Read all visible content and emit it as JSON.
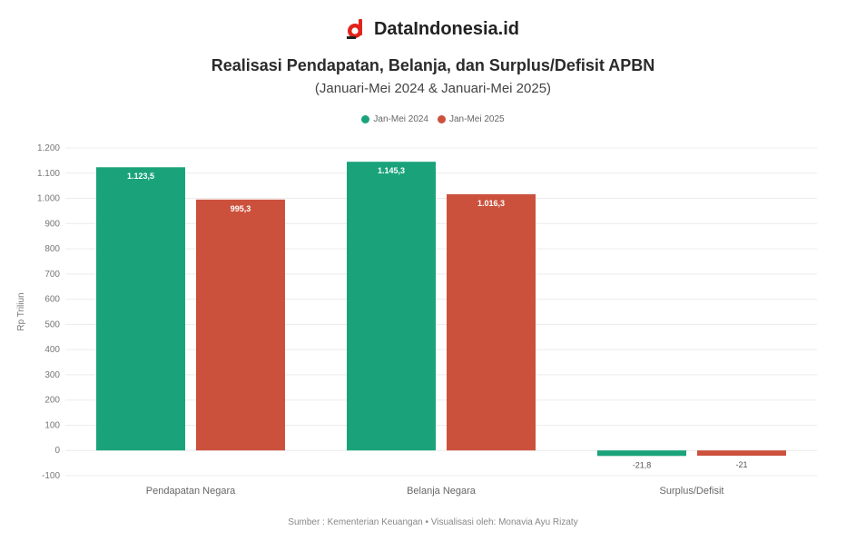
{
  "brand": {
    "name": "DataIndonesia.id",
    "logo_icon": "dataindonesia-logo-icon"
  },
  "chart_data": {
    "type": "bar",
    "title": "Realisasi Pendapatan, Belanja, dan Surplus/Defisit APBN",
    "subtitle": "(Januari-Mei 2024 & Januari-Mei 2025)",
    "xlabel": "",
    "ylabel": "Rp Triliun",
    "categories": [
      "Pendapatan Negara",
      "Belanja Negara",
      "Surplus/Defisit"
    ],
    "series": [
      {
        "name": "Jan-Mei 2024",
        "color": "#1aa37a",
        "values": [
          1123.5,
          1145.3,
          -21.8
        ],
        "labels": [
          "1.123,5",
          "1.145,3",
          "-21,8"
        ]
      },
      {
        "name": "Jan-Mei 2025",
        "color": "#cc513d",
        "values": [
          995.3,
          1016.3,
          -21
        ],
        "labels": [
          "995,3",
          "1.016,3",
          "-21"
        ]
      }
    ],
    "ylim": [
      -100,
      1200
    ],
    "yticks": [
      -100,
      0,
      100,
      200,
      300,
      400,
      500,
      600,
      700,
      800,
      900,
      1000,
      1100,
      1200
    ],
    "ytick_labels": [
      "-100",
      "0",
      "100",
      "200",
      "300",
      "400",
      "500",
      "600",
      "700",
      "800",
      "900",
      "1.000",
      "1.100",
      "1.200"
    ],
    "grid": true,
    "legend_position": "top-center"
  },
  "source": "Sumber : Kementerian Keuangan • Visualisasi oleh: Monavia Ayu Rizaty"
}
